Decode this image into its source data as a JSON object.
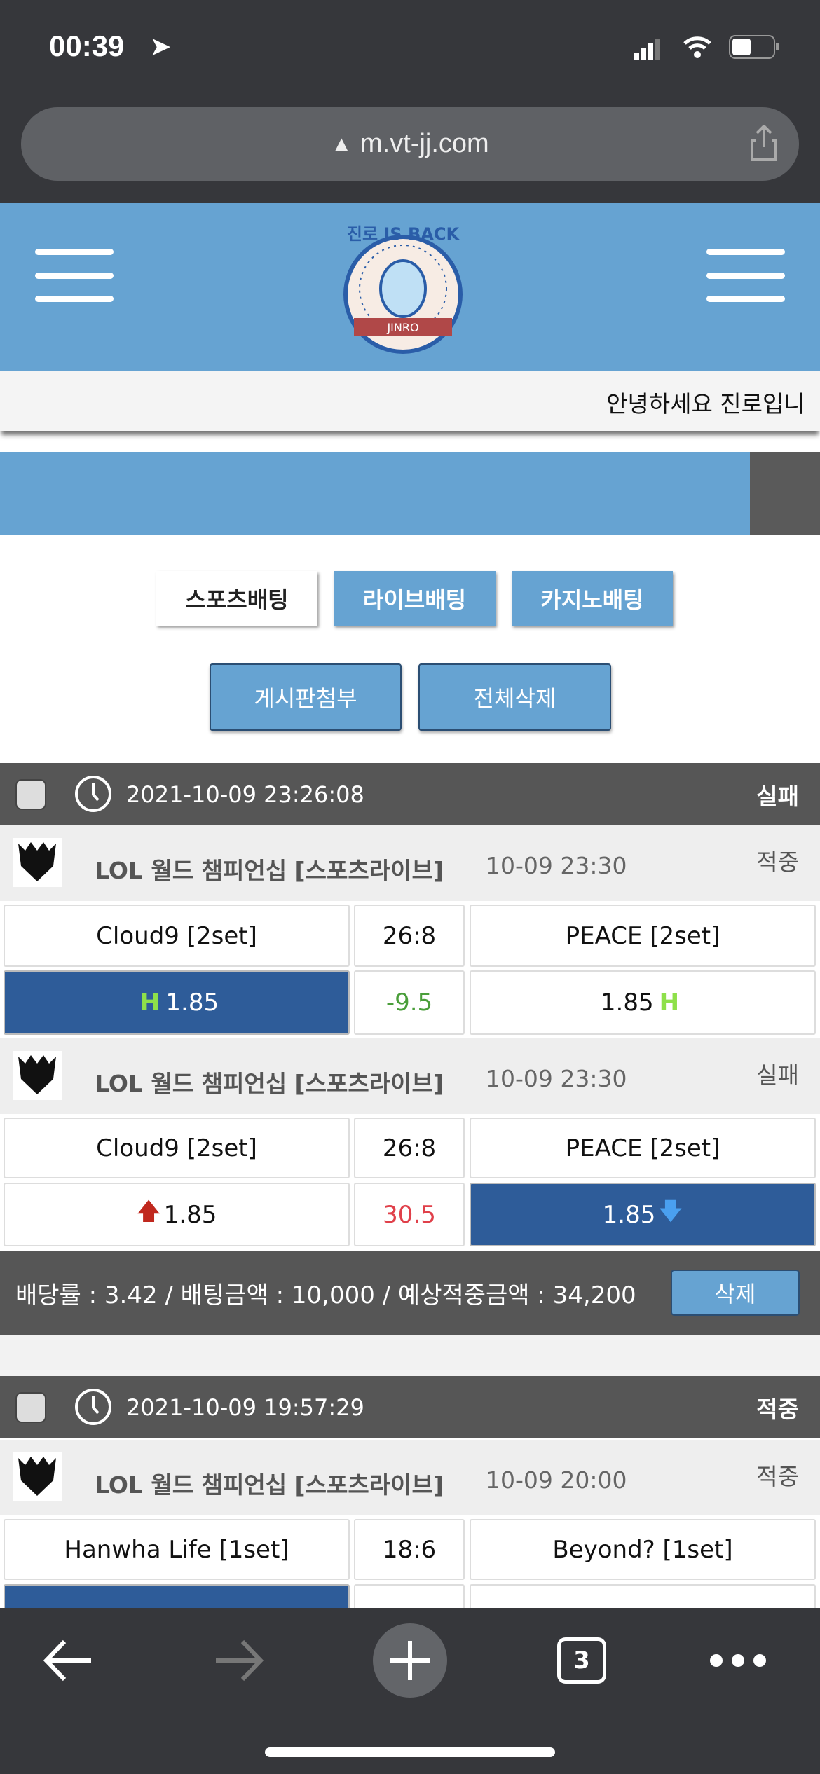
{
  "status_bar": {
    "time": "00:39"
  },
  "browser": {
    "url": "m.vt-jj.com",
    "tab_count": "3"
  },
  "header": {
    "logo_text": "진로 IS BACK JINRO"
  },
  "greeting": "안녕하세요 진로입니",
  "colors": {
    "header": "#66a3d2",
    "selected_odds": "#2e5c99",
    "section_header": "#565656",
    "handicap_green": "#4a9e3a",
    "overunder_red": "#e0404a"
  },
  "tabs": [
    {
      "label": "스포츠배팅",
      "active": true
    },
    {
      "label": "라이브배팅",
      "active": false
    },
    {
      "label": "카지노배팅",
      "active": false
    }
  ],
  "actions": {
    "attach": "게시판첨부",
    "delete_all": "전체삭제"
  },
  "bets": [
    {
      "datetime": "2021-10-09 23:26:08",
      "result": "실패",
      "matches": [
        {
          "league": "LOL 월드 챔피언십 [스포츠라이브]",
          "time": "10-09 23:30",
          "result": "적중",
          "home": "Cloud9 [2set]",
          "score": "26:8",
          "away": "PEACE [2set]",
          "home_odds": "1.85",
          "line": "-9.5",
          "away_odds": "1.85",
          "marker": "H",
          "selected": "home"
        },
        {
          "league": "LOL 월드 챔피언십 [스포츠라이브]",
          "time": "10-09 23:30",
          "result": "실패",
          "home": "Cloud9 [2set]",
          "score": "26:8",
          "away": "PEACE [2set]",
          "home_odds": "1.85",
          "line": "30.5",
          "away_odds": "1.85",
          "marker": "over-under",
          "selected": "away"
        }
      ],
      "summary": "배당률 : 3.42 / 배팅금액 : 10,000 / 예상적중금액 : 34,200",
      "delete": "삭제"
    },
    {
      "datetime": "2021-10-09 19:57:29",
      "result": "적중",
      "matches": [
        {
          "league": "LOL 월드 챔피언십 [스포츠라이브]",
          "time": "10-09 20:00",
          "result": "적중",
          "home": "Hanwha Life [1set]",
          "score": "18:6",
          "away": "Beyond? [1set]",
          "selected": "home"
        }
      ]
    }
  ]
}
